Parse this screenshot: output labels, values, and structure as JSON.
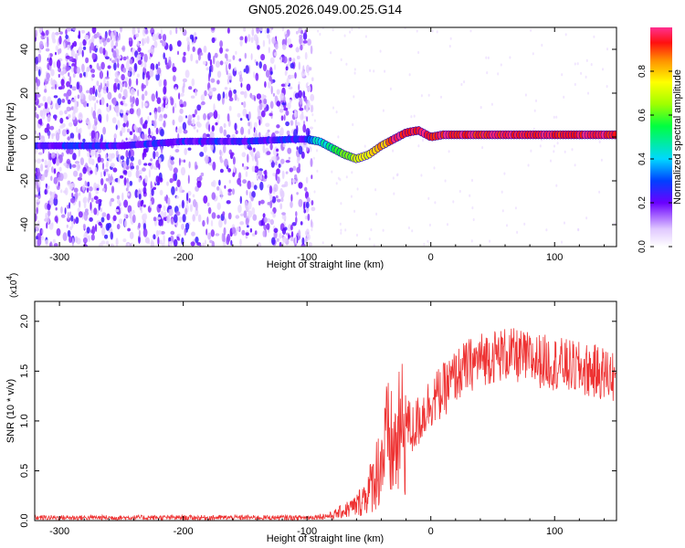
{
  "figure_title": "GN05.2026.049.00.25.G14",
  "chart_data": [
    {
      "type": "heatmap",
      "xlabel": "Height of straight line (km)",
      "ylabel": "Frequency (Hz)",
      "xlim": [
        -320,
        150
      ],
      "ylim": [
        -50,
        50
      ],
      "x_ticks": [
        -300,
        -200,
        -100,
        0,
        100
      ],
      "y_ticks": [
        -40,
        -20,
        0,
        20,
        40
      ],
      "colorbar": {
        "label": "Normalized spectral amplitude",
        "range": [
          0,
          1
        ],
        "ticks": [
          "0.0",
          "0.2",
          "0.4",
          "0.6",
          "0.8"
        ],
        "ticks_values": [
          0.0,
          0.2,
          0.4,
          0.6,
          0.8
        ]
      },
      "ridge_frequency": {
        "x": [
          -320,
          -250,
          -200,
          -150,
          -110,
          -100,
          -90,
          -80,
          -70,
          -60,
          -50,
          -40,
          -30,
          -20,
          -10,
          0,
          10,
          20,
          50,
          100,
          150
        ],
        "y": [
          -4,
          -4,
          -2,
          -2,
          -1,
          -1,
          -2,
          -5,
          -8,
          -10,
          -8,
          -4,
          -1,
          2,
          3,
          0,
          1,
          1,
          1,
          1,
          1
        ]
      },
      "ridge_amplitude_note": "low (purple) below -100 km, rising to 1.0 (red) above -30 km"
    },
    {
      "type": "line",
      "xlabel": "Height of straight line (km)",
      "ylabel": "SNR (10 * v/v)",
      "y_multiplier": "(x10",
      "y_multiplier_exp": "4",
      "xlim": [
        -320,
        150
      ],
      "ylim": [
        0,
        2.2
      ],
      "x_ticks": [
        -300,
        -200,
        -100,
        0,
        100
      ],
      "y_ticks": [
        "0.0",
        "0.5",
        "1.0",
        "1.5",
        "2.0"
      ],
      "y_ticks_values": [
        0.0,
        0.5,
        1.0,
        1.5,
        2.0
      ],
      "series_color": "#ee3333",
      "series": [
        {
          "x": [
            -320,
            -250,
            -200,
            -150,
            -100,
            -80,
            -70,
            -60,
            -50,
            -40,
            -35,
            -30,
            -25,
            -20,
            -15,
            -10,
            -5,
            0,
            10,
            20,
            30,
            40,
            50,
            60,
            70,
            80,
            90,
            100,
            110,
            120,
            130,
            140,
            150
          ],
          "y": [
            0.03,
            0.03,
            0.03,
            0.03,
            0.03,
            0.05,
            0.1,
            0.15,
            0.3,
            0.6,
            0.8,
            0.7,
            0.85,
            1.0,
            0.9,
            1.0,
            1.1,
            1.2,
            1.3,
            1.45,
            1.55,
            1.62,
            1.65,
            1.67,
            1.65,
            1.62,
            1.6,
            1.58,
            1.55,
            1.52,
            1.5,
            1.48,
            1.45
          ]
        }
      ]
    }
  ]
}
